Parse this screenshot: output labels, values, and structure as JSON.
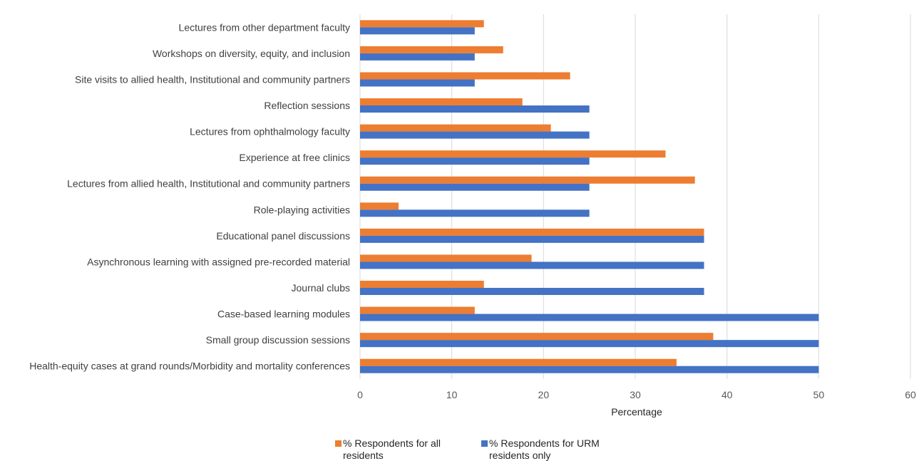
{
  "chart_data": {
    "type": "bar",
    "orientation": "horizontal",
    "categories": [
      "Lectures from other department faculty",
      "Workshops on diversity, equity, and inclusion",
      "Site visits to allied health, Institutional and community partners",
      "Reflection sessions",
      "Lectures from ophthalmology faculty",
      "Experience at free clinics",
      "Lectures from allied health, Institutional and community partners",
      "Role-playing activities",
      "Educational panel discussions",
      "Asynchronous learning with assigned pre-recorded material",
      "Journal clubs",
      "Case-based learning modules",
      "Small group discussion sessions",
      "Health-equity cases at grand rounds/Morbidity and mortality conferences"
    ],
    "series": [
      {
        "name": "% Respondents for all residents",
        "legend_lines": [
          "% Respondents for all",
          "residents"
        ],
        "color": "#ED7D31",
        "values": [
          13.5,
          15.6,
          22.9,
          17.7,
          20.8,
          33.3,
          36.5,
          4.2,
          37.5,
          18.7,
          13.5,
          12.5,
          38.5,
          34.5
        ]
      },
      {
        "name": "% Respondents for URM residents only",
        "legend_lines": [
          "% Respondents for URM",
          "residents only"
        ],
        "color": "#4472C4",
        "values": [
          12.5,
          12.5,
          12.5,
          25,
          25,
          25,
          25,
          25,
          37.5,
          37.5,
          37.5,
          50,
          50,
          50
        ]
      }
    ],
    "xlabel": "Percentage",
    "ylabel": "",
    "xlim": [
      0,
      60
    ],
    "xticks": [
      "0",
      "10",
      "20",
      "30",
      "40",
      "50",
      "60"
    ],
    "grid": "vertical",
    "legend_position": "bottom"
  }
}
